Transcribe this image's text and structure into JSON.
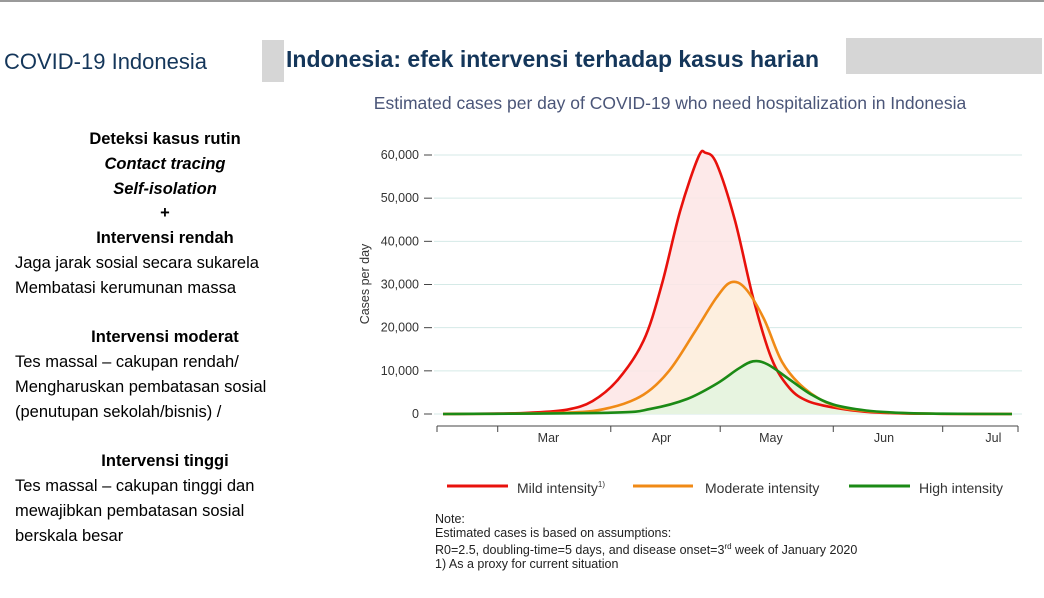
{
  "header": {
    "section_title": "COVID-19 Indonesia",
    "page_title": "Indonesia: efek intervensi terhadap kasus harian"
  },
  "left_panel": {
    "routine_heading": "Deteksi kasus rutin",
    "routine_item_1": "Contact tracing",
    "routine_item_2": "Self-isolation",
    "plus": "+",
    "low_heading": "Intervensi rendah",
    "low_line_1": "Jaga jarak sosial secara sukarela",
    "low_line_2": "Membatasi kerumunan massa",
    "moderate_heading": "Intervensi moderat",
    "moderate_line_1": "Tes massal – cakupan rendah/",
    "moderate_line_2": "Mengharuskan pembatasan sosial",
    "moderate_line_3": "(penutupan sekolah/bisnis) /",
    "high_heading": "Intervensi tinggi",
    "high_line_1": "Tes massal – cakupan tinggi dan",
    "high_line_2": "mewajibkan pembatasan sosial",
    "high_line_3": "berskala besar"
  },
  "chart_data": {
    "type": "area",
    "title": "Estimated cases per day of COVID-19 who need hospitalization in Indonesia",
    "xlabel": "",
    "ylabel": "Cases per day",
    "x_ticks": [
      "Mar",
      "Apr",
      "May",
      "Jun",
      "Jul"
    ],
    "x_range": [
      "2020-02-15",
      "2020-07-20"
    ],
    "y_ticks": [
      "0",
      "10,000",
      "20,000",
      "30,000",
      "40,000",
      "50,000",
      "60,000"
    ],
    "ylim": [
      0,
      60000
    ],
    "grid": "horizontal",
    "legend_position": "bottom",
    "series": [
      {
        "name": "Mild intensity",
        "legend_superscript": "1)",
        "color": "#e8110c",
        "fill": "#fde5e5",
        "points": [
          [
            "2020-02-15",
            0
          ],
          [
            "2020-03-01",
            100
          ],
          [
            "2020-03-10",
            300
          ],
          [
            "2020-03-20",
            1000
          ],
          [
            "2020-03-27",
            3000
          ],
          [
            "2020-04-03",
            8000
          ],
          [
            "2020-04-10",
            17000
          ],
          [
            "2020-04-15",
            30000
          ],
          [
            "2020-04-20",
            47000
          ],
          [
            "2020-04-25",
            59500
          ],
          [
            "2020-04-27",
            60500
          ],
          [
            "2020-04-30",
            58000
          ],
          [
            "2020-05-05",
            45000
          ],
          [
            "2020-05-10",
            27000
          ],
          [
            "2020-05-15",
            13000
          ],
          [
            "2020-05-20",
            6000
          ],
          [
            "2020-05-25",
            3000
          ],
          [
            "2020-06-01",
            1500
          ],
          [
            "2020-06-10",
            500
          ],
          [
            "2020-06-20",
            150
          ],
          [
            "2020-07-01",
            50
          ],
          [
            "2020-07-20",
            0
          ]
        ]
      },
      {
        "name": "Moderate intensity",
        "color": "#f08a16",
        "fill": "#fdf0dd",
        "points": [
          [
            "2020-02-15",
            0
          ],
          [
            "2020-03-20",
            300
          ],
          [
            "2020-04-01",
            1500
          ],
          [
            "2020-04-10",
            4500
          ],
          [
            "2020-04-17",
            10000
          ],
          [
            "2020-04-24",
            19000
          ],
          [
            "2020-04-30",
            27000
          ],
          [
            "2020-05-04",
            30500
          ],
          [
            "2020-05-08",
            29000
          ],
          [
            "2020-05-13",
            22000
          ],
          [
            "2020-05-18",
            12000
          ],
          [
            "2020-05-24",
            6000
          ],
          [
            "2020-06-01",
            2000
          ],
          [
            "2020-06-10",
            700
          ],
          [
            "2020-06-20",
            200
          ],
          [
            "2020-07-01",
            50
          ],
          [
            "2020-07-20",
            0
          ]
        ]
      },
      {
        "name": "High intensity",
        "color": "#1b8a15",
        "fill": "#e3f4e0",
        "points": [
          [
            "2020-02-15",
            0
          ],
          [
            "2020-04-01",
            300
          ],
          [
            "2020-04-12",
            1200
          ],
          [
            "2020-04-22",
            3500
          ],
          [
            "2020-04-30",
            7000
          ],
          [
            "2020-05-06",
            10500
          ],
          [
            "2020-05-10",
            12200
          ],
          [
            "2020-05-14",
            11500
          ],
          [
            "2020-05-20",
            8000
          ],
          [
            "2020-05-26",
            4500
          ],
          [
            "2020-06-01",
            2200
          ],
          [
            "2020-06-10",
            800
          ],
          [
            "2020-06-20",
            250
          ],
          [
            "2020-07-01",
            70
          ],
          [
            "2020-07-20",
            0
          ]
        ]
      }
    ]
  },
  "note": {
    "heading": "Note:",
    "line_1": "Estimated cases is based on assumptions:",
    "line_2_pre": "R0=2.5, doubling-time=5 days, and disease onset=3",
    "line_2_sup": "rd",
    "line_2_post": " week of January 2020",
    "line_3": "1) As a proxy for current situation"
  }
}
